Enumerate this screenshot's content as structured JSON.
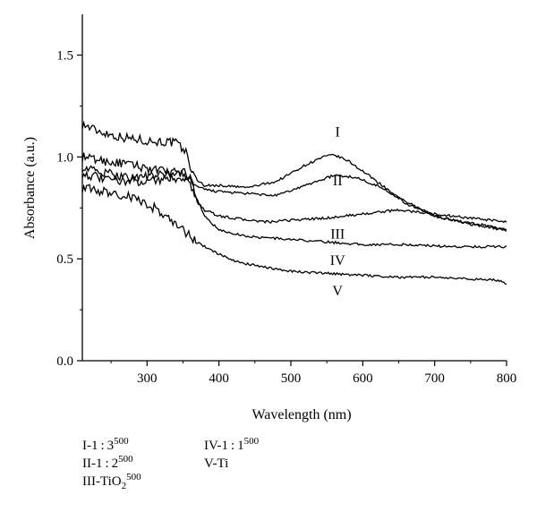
{
  "chart_data": {
    "type": "line",
    "xlabel": "Wavelength (nm)",
    "ylabel": "Absorbance (a.u.)",
    "xlim": [
      210,
      800
    ],
    "ylim": [
      0.0,
      1.7
    ],
    "x_ticks": [
      300,
      400,
      500,
      600,
      700,
      800
    ],
    "y_ticks": [
      0.0,
      0.5,
      1.0,
      1.5
    ],
    "x_tick_labels": [
      "300",
      "400",
      "500",
      "600",
      "700",
      "800"
    ],
    "y_tick_labels": [
      "0.0",
      "0.5",
      "1.0",
      "1.5"
    ],
    "grid": false,
    "series": [
      {
        "name": "I",
        "label_at": [
          565,
          1.1
        ],
        "x": [
          210,
          230,
          260,
          300,
          340,
          355,
          365,
          380,
          400,
          440,
          480,
          520,
          545,
          560,
          580,
          620,
          660,
          700,
          740,
          780,
          800
        ],
        "y": [
          1.16,
          1.13,
          1.1,
          1.08,
          1.07,
          1.02,
          0.9,
          0.86,
          0.86,
          0.85,
          0.88,
          0.96,
          1.0,
          1.01,
          0.98,
          0.88,
          0.77,
          0.71,
          0.68,
          0.66,
          0.64
        ]
      },
      {
        "name": "II",
        "label_at": [
          565,
          0.86
        ],
        "x": [
          210,
          240,
          280,
          320,
          350,
          365,
          380,
          400,
          440,
          480,
          520,
          560,
          590,
          620,
          660,
          700,
          750,
          800
        ],
        "y": [
          1.0,
          0.98,
          0.96,
          0.93,
          0.92,
          0.86,
          0.84,
          0.83,
          0.82,
          0.81,
          0.86,
          0.91,
          0.9,
          0.86,
          0.78,
          0.71,
          0.67,
          0.64
        ]
      },
      {
        "name": "III",
        "label_at": [
          565,
          0.6
        ],
        "x": [
          210,
          240,
          280,
          320,
          350,
          360,
          370,
          380,
          400,
          440,
          470,
          500,
          550,
          600,
          650,
          700,
          750,
          800
        ],
        "y": [
          0.95,
          0.92,
          0.9,
          0.91,
          0.93,
          0.9,
          0.78,
          0.74,
          0.71,
          0.69,
          0.68,
          0.69,
          0.7,
          0.72,
          0.74,
          0.72,
          0.7,
          0.68
        ]
      },
      {
        "name": "IV",
        "label_at": [
          565,
          0.47
        ],
        "x": [
          210,
          240,
          280,
          320,
          350,
          360,
          370,
          380,
          400,
          440,
          480,
          520,
          560,
          600,
          660,
          720,
          800
        ],
        "y": [
          0.92,
          0.89,
          0.88,
          0.89,
          0.9,
          0.87,
          0.79,
          0.71,
          0.64,
          0.61,
          0.6,
          0.59,
          0.58,
          0.57,
          0.57,
          0.56,
          0.56
        ]
      },
      {
        "name": "V",
        "label_at": [
          565,
          0.32
        ],
        "x": [
          210,
          240,
          280,
          310,
          330,
          350,
          370,
          390,
          420,
          460,
          500,
          540,
          600,
          650,
          700,
          750,
          780,
          800
        ],
        "y": [
          0.85,
          0.83,
          0.8,
          0.75,
          0.7,
          0.64,
          0.58,
          0.54,
          0.49,
          0.46,
          0.44,
          0.43,
          0.42,
          0.41,
          0.41,
          0.4,
          0.4,
          0.38
        ]
      }
    ]
  },
  "legend": {
    "col1": [
      {
        "base": "I-1 : 3",
        "sup": "500"
      },
      {
        "base": "II-1 : 2",
        "sup": "500"
      },
      {
        "base": "III-TiO",
        "sub": "2",
        "sup": "500"
      }
    ],
    "col2": [
      {
        "base": "IV-1 : 1",
        "sup": "500"
      },
      {
        "base": "V-Ti"
      }
    ]
  }
}
